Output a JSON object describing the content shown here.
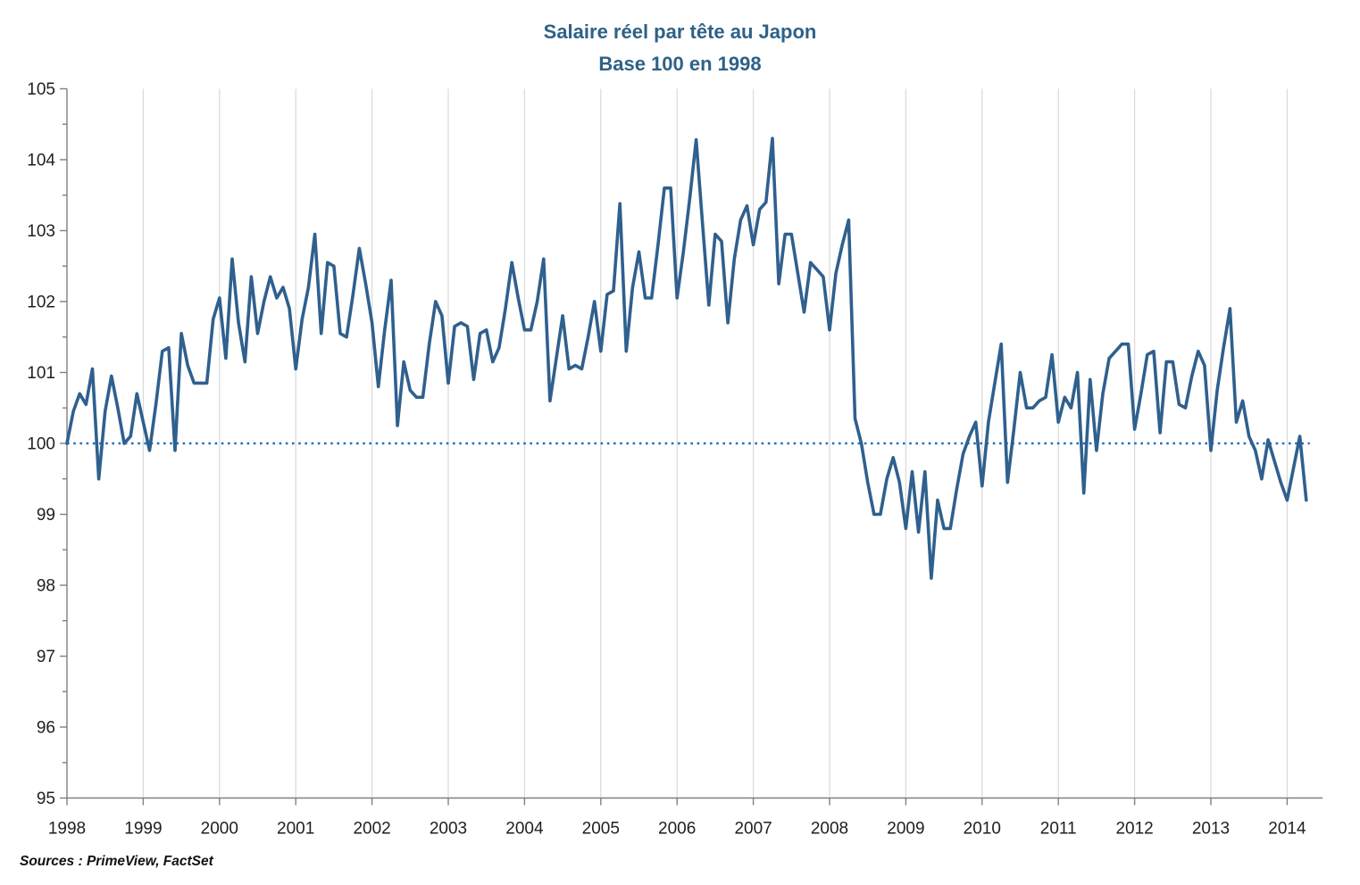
{
  "title": {
    "line1": "Salaire réel par tête au Japon",
    "line2": "Base 100 en 1998"
  },
  "source": "Sources : PrimeView, FactSet",
  "colors": {
    "line": "#2f608e",
    "baseline": "#1e6fc0",
    "title": "#2e6187",
    "axis": "#808080",
    "grid": "#d9d9d9",
    "label": "#1f1f1f"
  },
  "chart_data": {
    "type": "line",
    "title": "Salaire réel par tête au Japon",
    "subtitle": "Base 100 en 1998",
    "xlabel": "",
    "ylabel": "",
    "frequency": "monthly",
    "points_start": "1998-01",
    "points_end": "2014-04",
    "x_tick_labels": [
      "1998",
      "1999",
      "2000",
      "2001",
      "2002",
      "2003",
      "2004",
      "2005",
      "2006",
      "2007",
      "2008",
      "2009",
      "2010",
      "2011",
      "2012",
      "2013",
      "2014"
    ],
    "y_tick_labels": [
      "95",
      "96",
      "97",
      "98",
      "99",
      "100",
      "101",
      "102",
      "103",
      "104",
      "105"
    ],
    "ylim": [
      95,
      105
    ],
    "grid": "vertical-yearly-only",
    "legend": "none",
    "baseline": {
      "value": 100,
      "style": "dotted"
    },
    "series": [
      {
        "name": "Salaire réel par tête au Japon (base 100 en 1998)",
        "values": [
          100.0,
          100.45,
          100.7,
          100.55,
          101.05,
          99.5,
          100.45,
          100.95,
          100.5,
          100.0,
          100.1,
          100.7,
          100.3,
          99.9,
          100.55,
          101.3,
          101.35,
          99.9,
          101.55,
          101.1,
          100.85,
          100.85,
          100.85,
          101.75,
          102.05,
          101.2,
          102.6,
          101.7,
          101.15,
          102.35,
          101.55,
          102.0,
          102.35,
          102.05,
          102.2,
          101.9,
          101.05,
          101.75,
          102.2,
          102.95,
          101.55,
          102.55,
          102.5,
          101.55,
          101.5,
          102.1,
          102.75,
          102.25,
          101.7,
          100.8,
          101.6,
          102.3,
          100.25,
          101.15,
          100.75,
          100.65,
          100.65,
          101.4,
          102.0,
          101.8,
          100.85,
          101.65,
          101.7,
          101.65,
          100.9,
          101.55,
          101.6,
          101.15,
          101.35,
          101.9,
          102.55,
          102.05,
          101.6,
          101.6,
          102.0,
          102.6,
          100.6,
          101.2,
          101.8,
          101.05,
          101.1,
          101.05,
          101.5,
          102.0,
          101.3,
          102.1,
          102.15,
          103.38,
          101.3,
          102.2,
          102.7,
          102.05,
          102.05,
          102.8,
          103.6,
          103.6,
          102.05,
          102.7,
          103.45,
          104.28,
          103.1,
          101.95,
          102.95,
          102.85,
          101.7,
          102.6,
          103.15,
          103.35,
          102.8,
          103.3,
          103.4,
          104.3,
          102.25,
          102.95,
          102.95,
          102.4,
          101.85,
          102.55,
          102.45,
          102.35,
          101.6,
          102.4,
          102.8,
          103.15,
          100.35,
          100.0,
          99.45,
          99.0,
          99.0,
          99.5,
          99.8,
          99.45,
          98.8,
          99.6,
          98.75,
          99.6,
          98.1,
          99.2,
          98.8,
          98.8,
          99.35,
          99.85,
          100.1,
          100.3,
          99.4,
          100.3,
          100.85,
          101.4,
          99.45,
          100.2,
          101.0,
          100.5,
          100.5,
          100.6,
          100.65,
          101.25,
          100.3,
          100.65,
          100.5,
          101.0,
          99.3,
          100.9,
          99.9,
          100.7,
          101.2,
          101.3,
          101.4,
          101.4,
          100.2,
          100.7,
          101.25,
          101.3,
          100.15,
          101.15,
          101.15,
          100.55,
          100.5,
          100.95,
          101.3,
          101.1,
          99.9,
          100.75,
          101.35,
          101.9,
          100.3,
          100.6,
          100.1,
          99.9,
          99.5,
          100.05,
          99.75,
          99.45,
          99.2,
          99.65,
          100.1,
          99.2
        ]
      }
    ]
  }
}
